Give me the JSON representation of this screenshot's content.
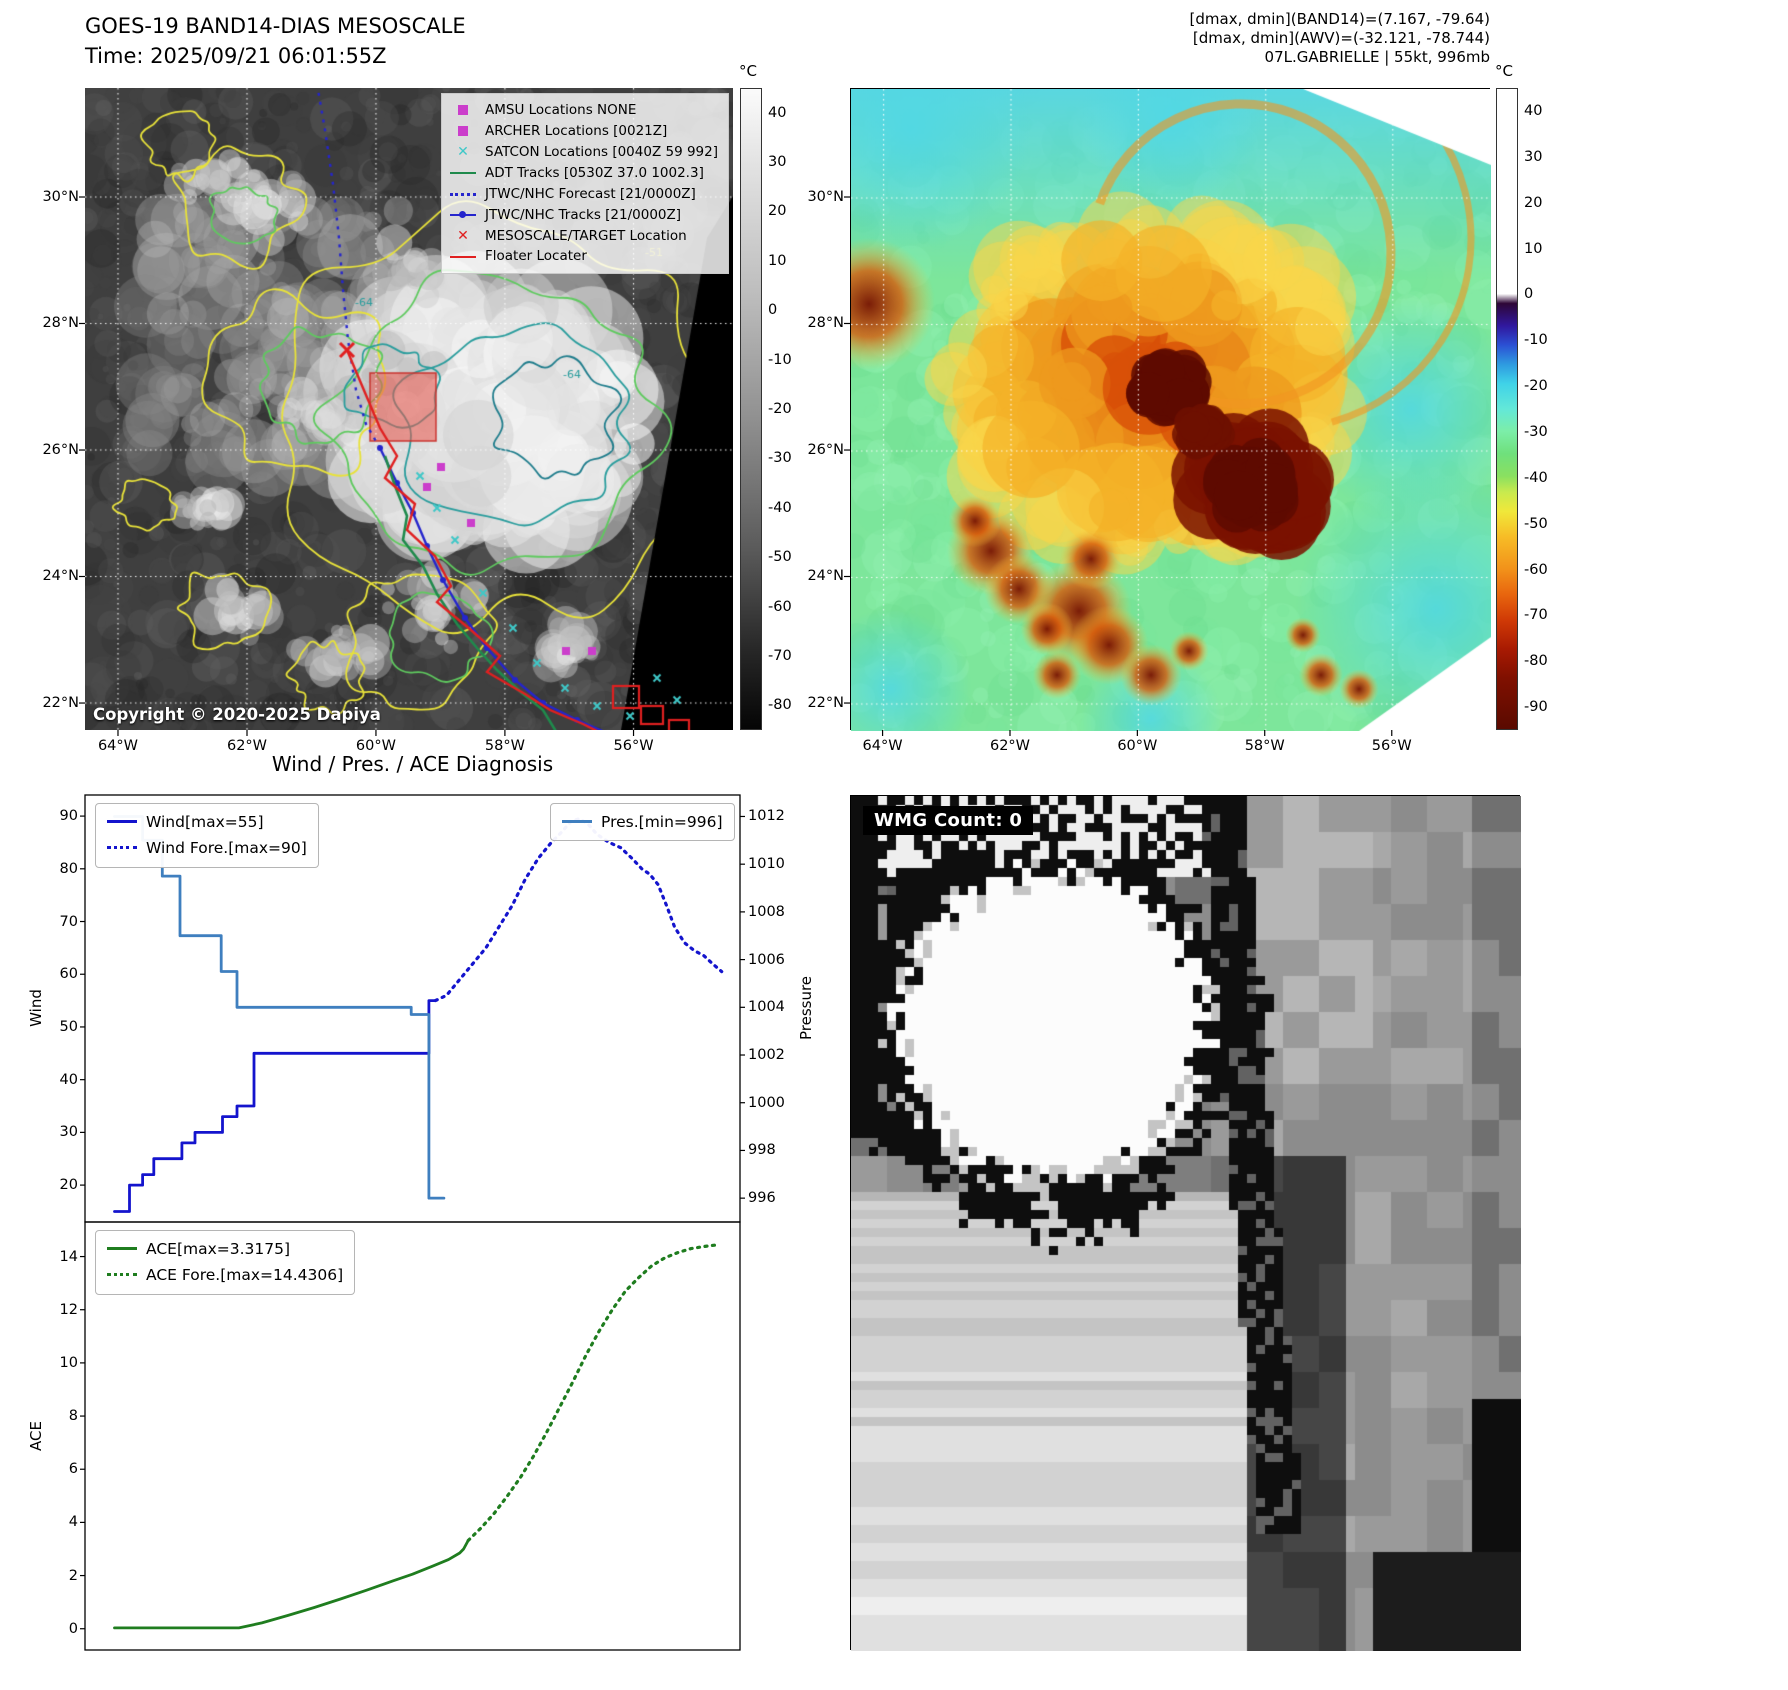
{
  "panel_tl": {
    "title_line1": "GOES-19 BAND14-DIAS MESOSCALE",
    "title_line2": "Time: 2025/09/21 06:01:55Z",
    "copyright": "Copyright © 2020-2025 Dapiya",
    "colorbar_unit": "°C",
    "colorbar_ticks": [
      "40",
      "30",
      "20",
      "10",
      "0",
      "-10",
      "-20",
      "-30",
      "-40",
      "-50",
      "-60",
      "-70",
      "-80"
    ],
    "x_ticks": [
      "64°W",
      "62°W",
      "60°W",
      "58°W",
      "56°W"
    ],
    "y_ticks": [
      "30°N",
      "28°N",
      "26°N",
      "24°N",
      "22°N"
    ],
    "contour_labels": [
      "-64",
      "-64",
      "-51"
    ],
    "legend": [
      {
        "label": "AMSU Locations NONE",
        "marker": "square",
        "color": "#cb3ecb"
      },
      {
        "label": "ARCHER Locations [0021Z]",
        "marker": "square",
        "color": "#cb3ecb"
      },
      {
        "label": "SATCON Locations [0040Z 59 992]",
        "marker": "x",
        "color": "#3fc8c8"
      },
      {
        "label": "ADT Tracks [0530Z 37.0 1002.3]",
        "marker": "line",
        "color": "#1f8a4c"
      },
      {
        "label": "JTWC/NHC Forecast [21/0000Z]",
        "marker": "dotted",
        "color": "#2525cd"
      },
      {
        "label": "JTWC/NHC Tracks [21/0000Z]",
        "marker": "line-dot",
        "color": "#2525cd"
      },
      {
        "label": "MESOSCALE/TARGET Location",
        "marker": "x",
        "color": "#e02020"
      },
      {
        "label": "Floater Locater",
        "marker": "line",
        "color": "#e02020"
      }
    ]
  },
  "panel_tr": {
    "header_line1": "[dmax, dmin](BAND14)=(7.167, -79.64)",
    "header_line2": "[dmax, dmin](AWV)=(-32.121, -78.744)",
    "header_line3": "07L.GABRIELLE | 55kt, 996mb",
    "colorbar_unit": "°C",
    "colorbar_ticks": [
      "40",
      "30",
      "20",
      "10",
      "0",
      "-10",
      "-20",
      "-30",
      "-40",
      "-50",
      "-60",
      "-70",
      "-80",
      "-90"
    ],
    "x_ticks": [
      "64°W",
      "62°W",
      "60°W",
      "58°W",
      "56°W"
    ],
    "y_ticks": [
      "30°N",
      "28°N",
      "26°N",
      "24°N",
      "22°N"
    ]
  },
  "panel_br": {
    "wmg_label": "WMG Count: 0"
  },
  "chart_data": [
    {
      "type": "line",
      "title": "Wind / Pres. / ACE Diagnosis",
      "xlabel": "",
      "x_range": [
        0,
        1
      ],
      "grid": false,
      "left_axis": {
        "label": "Wind",
        "ticks": [
          90,
          80,
          70,
          60,
          50,
          40,
          30,
          20
        ],
        "ylim": [
          13,
          94
        ]
      },
      "right_axis": {
        "label": "Pressure",
        "ticks": [
          1012,
          1010,
          1008,
          1006,
          1004,
          1002,
          1000,
          998,
          996
        ],
        "ylim": [
          995.0,
          1012.9
        ]
      },
      "legend_left": [
        "Wind[max=55]",
        "Wind Fore.[max=90]"
      ],
      "legend_right": [
        "Pres.[min=996]"
      ],
      "series": [
        {
          "name": "Wind[max=55]",
          "axis": "left",
          "style": "solid",
          "color": "#1414cd",
          "points": [
            [
              0.045,
              15
            ],
            [
              0.068,
              15
            ],
            [
              0.068,
              20
            ],
            [
              0.088,
              20
            ],
            [
              0.088,
              22
            ],
            [
              0.105,
              22
            ],
            [
              0.105,
              25
            ],
            [
              0.148,
              25
            ],
            [
              0.148,
              28
            ],
            [
              0.168,
              28
            ],
            [
              0.168,
              30
            ],
            [
              0.21,
              30
            ],
            [
              0.21,
              33
            ],
            [
              0.232,
              33
            ],
            [
              0.232,
              35
            ],
            [
              0.258,
              35
            ],
            [
              0.258,
              45
            ],
            [
              0.518,
              45
            ],
            [
              0.525,
              45
            ],
            [
              0.525,
              55
            ],
            [
              0.535,
              55
            ]
          ]
        },
        {
          "name": "Wind Fore.[max=90]",
          "axis": "left",
          "style": "dotted",
          "color": "#1414cd",
          "points": [
            [
              0.535,
              55
            ],
            [
              0.552,
              56
            ],
            [
              0.572,
              59
            ],
            [
              0.592,
              62
            ],
            [
              0.612,
              65
            ],
            [
              0.632,
              69
            ],
            [
              0.652,
              73
            ],
            [
              0.672,
              78
            ],
            [
              0.692,
              82
            ],
            [
              0.712,
              85
            ],
            [
              0.728,
              87
            ],
            [
              0.742,
              89
            ],
            [
              0.755,
              89.5
            ],
            [
              0.768,
              88.5
            ],
            [
              0.782,
              86.5
            ],
            [
              0.8,
              85
            ],
            [
              0.818,
              84
            ],
            [
              0.835,
              82
            ],
            [
              0.85,
              80
            ],
            [
              0.862,
              79
            ],
            [
              0.875,
              77
            ],
            [
              0.888,
              73
            ],
            [
              0.9,
              69
            ],
            [
              0.915,
              66
            ],
            [
              0.93,
              64.5
            ],
            [
              0.945,
              63.5
            ],
            [
              0.958,
              62
            ],
            [
              0.972,
              60.5
            ]
          ]
        },
        {
          "name": "Pres.[min=996]",
          "axis": "right",
          "style": "solid",
          "color": "#3f7fbf",
          "points": [
            [
              0.045,
              1012
            ],
            [
              0.088,
              1012
            ],
            [
              0.088,
              1011
            ],
            [
              0.118,
              1011
            ],
            [
              0.118,
              1009.5
            ],
            [
              0.145,
              1009.5
            ],
            [
              0.145,
              1007
            ],
            [
              0.208,
              1007
            ],
            [
              0.208,
              1005.5
            ],
            [
              0.232,
              1005.5
            ],
            [
              0.232,
              1004
            ],
            [
              0.498,
              1004
            ],
            [
              0.498,
              1003.7
            ],
            [
              0.525,
              1003.7
            ],
            [
              0.525,
              996
            ],
            [
              0.548,
              996
            ]
          ]
        }
      ]
    },
    {
      "type": "line",
      "grid": false,
      "left_axis": {
        "label": "ACE",
        "ticks": [
          14,
          12,
          10,
          8,
          6,
          4,
          2,
          0
        ],
        "ylim": [
          -0.8,
          15.3
        ]
      },
      "legend_left": [
        "ACE[max=3.3175]",
        "ACE Fore.[max=14.4306]"
      ],
      "series": [
        {
          "name": "ACE[max=3.3175]",
          "axis": "left",
          "style": "solid",
          "color": "#1f7d1f",
          "points": [
            [
              0.045,
              0.03
            ],
            [
              0.235,
              0.03
            ],
            [
              0.27,
              0.22
            ],
            [
              0.31,
              0.5
            ],
            [
              0.35,
              0.8
            ],
            [
              0.39,
              1.12
            ],
            [
              0.43,
              1.45
            ],
            [
              0.47,
              1.8
            ],
            [
              0.5,
              2.05
            ],
            [
              0.53,
              2.35
            ],
            [
              0.555,
              2.6
            ],
            [
              0.572,
              2.85
            ],
            [
              0.578,
              3.0
            ],
            [
              0.585,
              3.32
            ]
          ]
        },
        {
          "name": "ACE Fore.[max=14.4306]",
          "axis": "left",
          "style": "dotted",
          "color": "#1f7d1f",
          "points": [
            [
              0.585,
              3.32
            ],
            [
              0.605,
              3.8
            ],
            [
              0.625,
              4.35
            ],
            [
              0.645,
              5.0
            ],
            [
              0.665,
              5.7
            ],
            [
              0.685,
              6.5
            ],
            [
              0.705,
              7.4
            ],
            [
              0.725,
              8.35
            ],
            [
              0.745,
              9.3
            ],
            [
              0.765,
              10.3
            ],
            [
              0.785,
              11.2
            ],
            [
              0.805,
              12.0
            ],
            [
              0.825,
              12.7
            ],
            [
              0.845,
              13.2
            ],
            [
              0.865,
              13.65
            ],
            [
              0.885,
              13.95
            ],
            [
              0.905,
              14.15
            ],
            [
              0.925,
              14.3
            ],
            [
              0.945,
              14.38
            ],
            [
              0.962,
              14.43
            ]
          ]
        }
      ]
    }
  ]
}
